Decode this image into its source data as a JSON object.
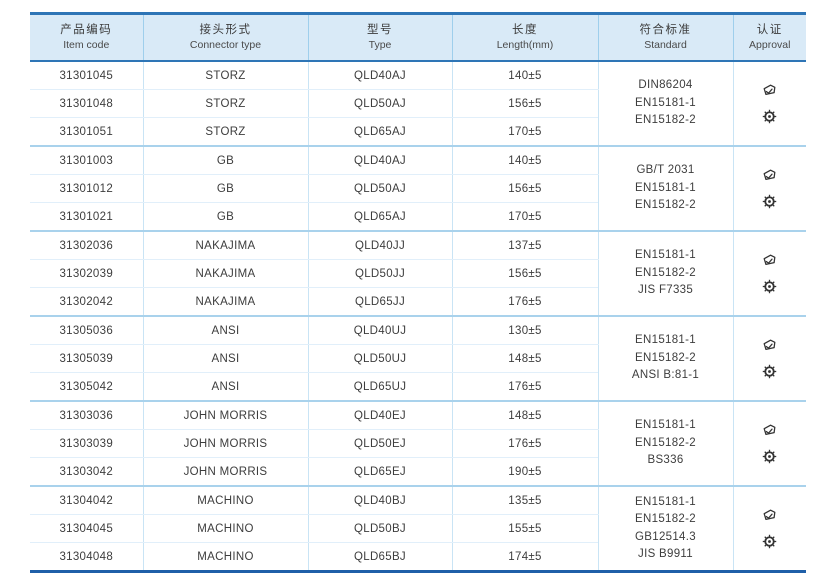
{
  "table": {
    "columns": [
      {
        "zh": "产品编码",
        "en": "Item code"
      },
      {
        "zh": "接头形式",
        "en": "Connector type"
      },
      {
        "zh": "型号",
        "en": "Type"
      },
      {
        "zh": "长度",
        "en": "Length(mm)"
      },
      {
        "zh": "符合标准",
        "en": "Standard"
      },
      {
        "zh": "认证",
        "en": "Approval"
      }
    ],
    "groups": [
      {
        "rows": [
          {
            "item_code": "31301045",
            "connector_type": "STORZ",
            "type": "QLD40AJ",
            "length": "140±5"
          },
          {
            "item_code": "31301048",
            "connector_type": "STORZ",
            "type": "QLD50AJ",
            "length": "156±5"
          },
          {
            "item_code": "31301051",
            "connector_type": "STORZ",
            "type": "QLD65AJ",
            "length": "170±5"
          }
        ],
        "standards": [
          "DIN86204",
          "EN15181-1",
          "EN15182-2"
        ],
        "approval_icons": [
          "cert-stamp-icon",
          "wheelmark-icon"
        ]
      },
      {
        "rows": [
          {
            "item_code": "31301003",
            "connector_type": "GB",
            "type": "QLD40AJ",
            "length": "140±5"
          },
          {
            "item_code": "31301012",
            "connector_type": "GB",
            "type": "QLD50AJ",
            "length": "156±5"
          },
          {
            "item_code": "31301021",
            "connector_type": "GB",
            "type": "QLD65AJ",
            "length": "170±5"
          }
        ],
        "standards": [
          "GB/T 2031",
          "EN15181-1",
          "EN15182-2"
        ],
        "approval_icons": [
          "cert-stamp-icon",
          "wheelmark-icon"
        ]
      },
      {
        "rows": [
          {
            "item_code": "31302036",
            "connector_type": "NAKAJIMA",
            "type": "QLD40JJ",
            "length": "137±5"
          },
          {
            "item_code": "31302039",
            "connector_type": "NAKAJIMA",
            "type": "QLD50JJ",
            "length": "156±5"
          },
          {
            "item_code": "31302042",
            "connector_type": "NAKAJIMA",
            "type": "QLD65JJ",
            "length": "176±5"
          }
        ],
        "standards": [
          "EN15181-1",
          "EN15182-2",
          "JIS F7335"
        ],
        "approval_icons": [
          "cert-stamp-icon",
          "wheelmark-icon"
        ]
      },
      {
        "rows": [
          {
            "item_code": "31305036",
            "connector_type": "ANSI",
            "type": "QLD40UJ",
            "length": "130±5"
          },
          {
            "item_code": "31305039",
            "connector_type": "ANSI",
            "type": "QLD50UJ",
            "length": "148±5"
          },
          {
            "item_code": "31305042",
            "connector_type": "ANSI",
            "type": "QLD65UJ",
            "length": "176±5"
          }
        ],
        "standards": [
          "EN15181-1",
          "EN15182-2",
          "ANSI B:81-1"
        ],
        "approval_icons": [
          "cert-stamp-icon",
          "wheelmark-icon"
        ]
      },
      {
        "rows": [
          {
            "item_code": "31303036",
            "connector_type": "JOHN MORRIS",
            "type": "QLD40EJ",
            "length": "148±5"
          },
          {
            "item_code": "31303039",
            "connector_type": "JOHN MORRIS",
            "type": "QLD50EJ",
            "length": "176±5"
          },
          {
            "item_code": "31303042",
            "connector_type": "JOHN MORRIS",
            "type": "QLD65EJ",
            "length": "190±5"
          }
        ],
        "standards": [
          "EN15181-1",
          "EN15182-2",
          "BS336"
        ],
        "approval_icons": [
          "cert-stamp-icon",
          "wheelmark-icon"
        ]
      },
      {
        "rows": [
          {
            "item_code": "31304042",
            "connector_type": "MACHINO",
            "type": "QLD40BJ",
            "length": "135±5"
          },
          {
            "item_code": "31304045",
            "connector_type": "MACHINO",
            "type": "QLD50BJ",
            "length": "155±5"
          },
          {
            "item_code": "31304048",
            "connector_type": "MACHINO",
            "type": "QLD65BJ",
            "length": "174±5"
          }
        ],
        "standards": [
          "EN15181-1",
          "EN15182-2",
          "GB12514.3",
          "JIS B9911"
        ],
        "approval_icons": [
          "cert-stamp-icon",
          "wheelmark-icon"
        ]
      }
    ],
    "colors": {
      "header_background": "#d9eaf7",
      "header_border_blue": "#2e75b6",
      "table_bottom_border": "#1f5fa8",
      "group_separator_line": "#a9d2ec",
      "row_separator_line": "#e1effa",
      "column_separator_line": "#c9e4f5",
      "text": "#3d3d3d",
      "icon": "#333333"
    }
  }
}
